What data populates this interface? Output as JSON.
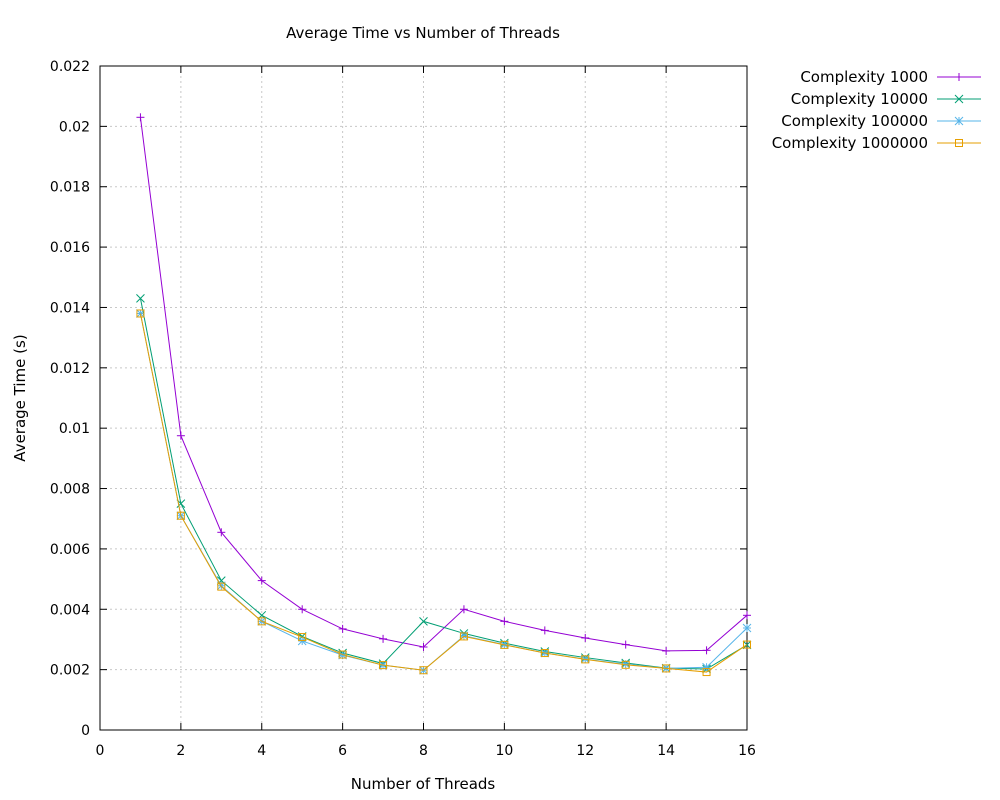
{
  "chart_data": {
    "type": "line",
    "title": "Average Time vs Number of Threads",
    "xlabel": "Number of Threads",
    "ylabel": "Average Time (s)",
    "xlim": [
      0,
      16
    ],
    "ylim": [
      0,
      0.022
    ],
    "xticks": [
      0,
      2,
      4,
      6,
      8,
      10,
      12,
      14,
      16
    ],
    "yticks": [
      0,
      0.002,
      0.004,
      0.006,
      0.008,
      0.01,
      0.012,
      0.014,
      0.016,
      0.018,
      0.02,
      0.022
    ],
    "xtick_labels": [
      "0",
      "2",
      "4",
      "6",
      "8",
      "10",
      "12",
      "14",
      "16"
    ],
    "ytick_labels": [
      "0",
      "0.002",
      "0.004",
      "0.006",
      "0.008",
      "0.01",
      "0.012",
      "0.014",
      "0.016",
      "0.018",
      "0.02",
      "0.022"
    ],
    "grid": true,
    "legend_position": "outside top-right",
    "x": [
      1,
      2,
      3,
      4,
      5,
      6,
      7,
      8,
      9,
      10,
      11,
      12,
      13,
      14,
      15,
      16
    ],
    "series": [
      {
        "name": "Complexity 1000",
        "color": "#9400d3",
        "marker": "plus",
        "values": [
          0.0203,
          0.00975,
          0.00655,
          0.00495,
          0.004,
          0.00335,
          0.00302,
          0.00275,
          0.004,
          0.0036,
          0.0033,
          0.00305,
          0.00283,
          0.00262,
          0.00264,
          0.0038
        ]
      },
      {
        "name": "Complexity 10000",
        "color": "#009e73",
        "marker": "cross",
        "values": [
          0.0143,
          0.0075,
          0.00495,
          0.0038,
          0.0031,
          0.00255,
          0.0022,
          0.0036,
          0.0032,
          0.00288,
          0.0026,
          0.0024,
          0.00222,
          0.00205,
          0.00202,
          0.00282
        ]
      },
      {
        "name": "Complexity 100000",
        "color": "#56b4e9",
        "marker": "star",
        "values": [
          0.0138,
          0.0071,
          0.00478,
          0.0036,
          0.00295,
          0.00248,
          0.00215,
          0.00198,
          0.00312,
          0.00283,
          0.00255,
          0.00235,
          0.00218,
          0.00204,
          0.00208,
          0.00338
        ]
      },
      {
        "name": "Complexity 1000000",
        "color": "#e69f00",
        "marker": "square",
        "values": [
          0.0138,
          0.0071,
          0.00475,
          0.0036,
          0.00308,
          0.0025,
          0.00215,
          0.00198,
          0.0031,
          0.00282,
          0.00255,
          0.00234,
          0.00216,
          0.00204,
          0.00192,
          0.00283
        ]
      }
    ]
  }
}
